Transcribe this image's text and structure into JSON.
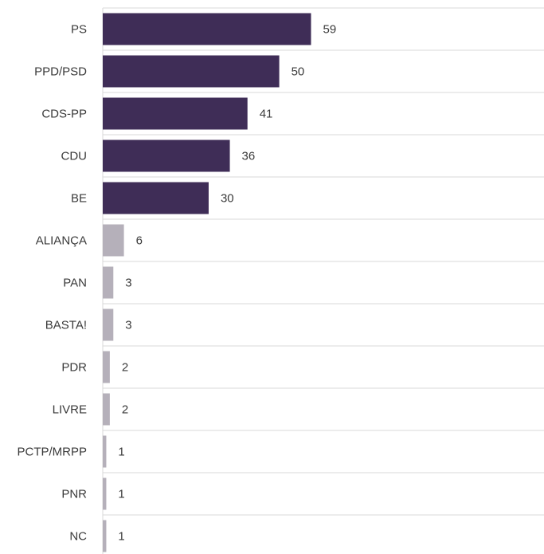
{
  "chart_data": {
    "type": "bar",
    "orientation": "horizontal",
    "categories": [
      "PS",
      "PPD/PSD",
      "CDS-PP",
      "CDU",
      "BE",
      "ALIANÇA",
      "PAN",
      "BASTA!",
      "PDR",
      "LIVRE",
      "PCTP/MRPP",
      "PNR",
      "NC"
    ],
    "values": [
      59,
      50,
      41,
      36,
      30,
      6,
      3,
      3,
      2,
      2,
      1,
      1,
      1
    ],
    "bar_colors": [
      "#3f2d57",
      "#3f2d57",
      "#3f2d57",
      "#3f2d57",
      "#3f2d57",
      "#b5b0ba",
      "#b5b0ba",
      "#b5b0ba",
      "#b5b0ba",
      "#b5b0ba",
      "#b5b0ba",
      "#b5b0ba",
      "#b5b0ba"
    ],
    "xlim": [
      0,
      125
    ],
    "title": "",
    "xlabel": "",
    "ylabel": "",
    "grid": true,
    "legend": "none"
  }
}
